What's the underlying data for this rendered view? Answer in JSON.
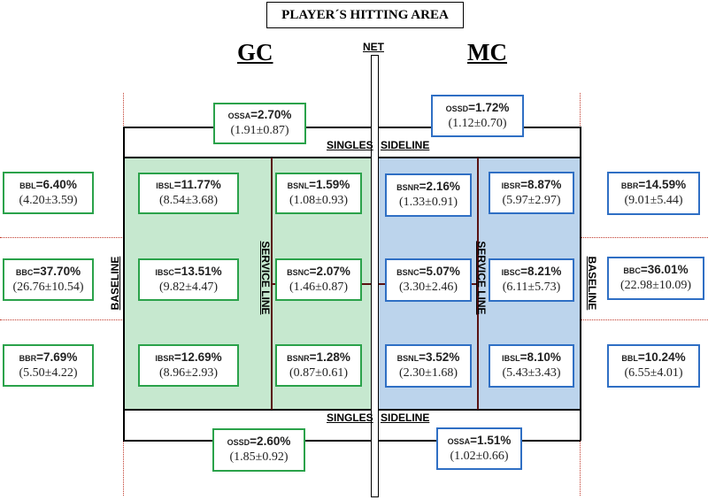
{
  "title": "PLAYER´S HITTING AREA",
  "left_team": "GC",
  "right_team": "MC",
  "net_label": "NET",
  "labels": {
    "singles_top_left": "SINGLES",
    "singles_top_right": "SIDELINE",
    "singles_bottom_left": "SINGLES",
    "singles_bottom_right": "SIDELINE",
    "baseline_left": "BASELINE",
    "baseline_right": "BASELINE",
    "service_line_left": "SERVICE LINE",
    "service_line_right": "SERVICE LINE"
  },
  "boxes": {
    "gc_ossa": {
      "abbr": "OSSA",
      "pct": "=2.70%",
      "sd": "(1.91±0.87)"
    },
    "gc_bbl": {
      "abbr": "BBL",
      "pct": "=6.40%",
      "sd": "(4.20±3.59)"
    },
    "gc_bbc": {
      "abbr": "BBC",
      "pct": "=37.70%",
      "sd": "(26.76±10.54)"
    },
    "gc_bbr": {
      "abbr": "BBR",
      "pct": "=7.69%",
      "sd": "(5.50±4.22)"
    },
    "gc_ibsl": {
      "abbr": "IBSL",
      "pct": "=11.77%",
      "sd": "(8.54±3.68)"
    },
    "gc_ibsc": {
      "abbr": "IBSC",
      "pct": "=13.51%",
      "sd": "(9.82±4.47)"
    },
    "gc_ibsr": {
      "abbr": "IBSR",
      "pct": "=12.69%",
      "sd": "(8.96±2.93)"
    },
    "gc_bsnl": {
      "abbr": "BSNL",
      "pct": "=1.59%",
      "sd": "(1.08±0.93)"
    },
    "gc_bsnc": {
      "abbr": "BSNC",
      "pct": "=2.07%",
      "sd": "(1.46±0.87)"
    },
    "gc_bsnr": {
      "abbr": "BSNR",
      "pct": "=1.28%",
      "sd": "(0.87±0.61)"
    },
    "gc_ossd": {
      "abbr": "OSSD",
      "pct": "=2.60%",
      "sd": "(1.85±0.92)"
    },
    "mc_ossd": {
      "abbr": "OSSD",
      "pct": "=1.72%",
      "sd": "(1.12±0.70)"
    },
    "mc_bsnr": {
      "abbr": "BSNR",
      "pct": "=2.16%",
      "sd": "(1.33±0.91)"
    },
    "mc_bsnc": {
      "abbr": "BSNC",
      "pct": "=5.07%",
      "sd": "(3.30±2.46)"
    },
    "mc_bsnl": {
      "abbr": "BSNL",
      "pct": "=3.52%",
      "sd": "(2.30±1.68)"
    },
    "mc_ibsr": {
      "abbr": "IBSR",
      "pct": "=8.87%",
      "sd": "(5.97±2.97)"
    },
    "mc_ibsc": {
      "abbr": "IBSC",
      "pct": "=8.21%",
      "sd": "(6.11±5.73)"
    },
    "mc_ibsl": {
      "abbr": "IBSL",
      "pct": "=8.10%",
      "sd": "(5.43±3.43)"
    },
    "mc_bbr": {
      "abbr": "BBR",
      "pct": "=14.59%",
      "sd": "(9.01±5.44)"
    },
    "mc_bbc": {
      "abbr": "BBC",
      "pct": "=36.01%",
      "sd": "(22.98±10.09)"
    },
    "mc_bbl": {
      "abbr": "BBL",
      "pct": "=10.24%",
      "sd": "(6.55±4.01)"
    },
    "mc_ossa": {
      "abbr": "OSSA",
      "pct": "=1.51%",
      "sd": "(1.02±0.66)"
    }
  },
  "colors": {
    "gc_border": "#2aa24a",
    "mc_border": "#2f6fc4",
    "gc_fill": "#c6e8cf",
    "mc_fill": "#bcd4ec",
    "guide_lines": "#c0392b"
  }
}
